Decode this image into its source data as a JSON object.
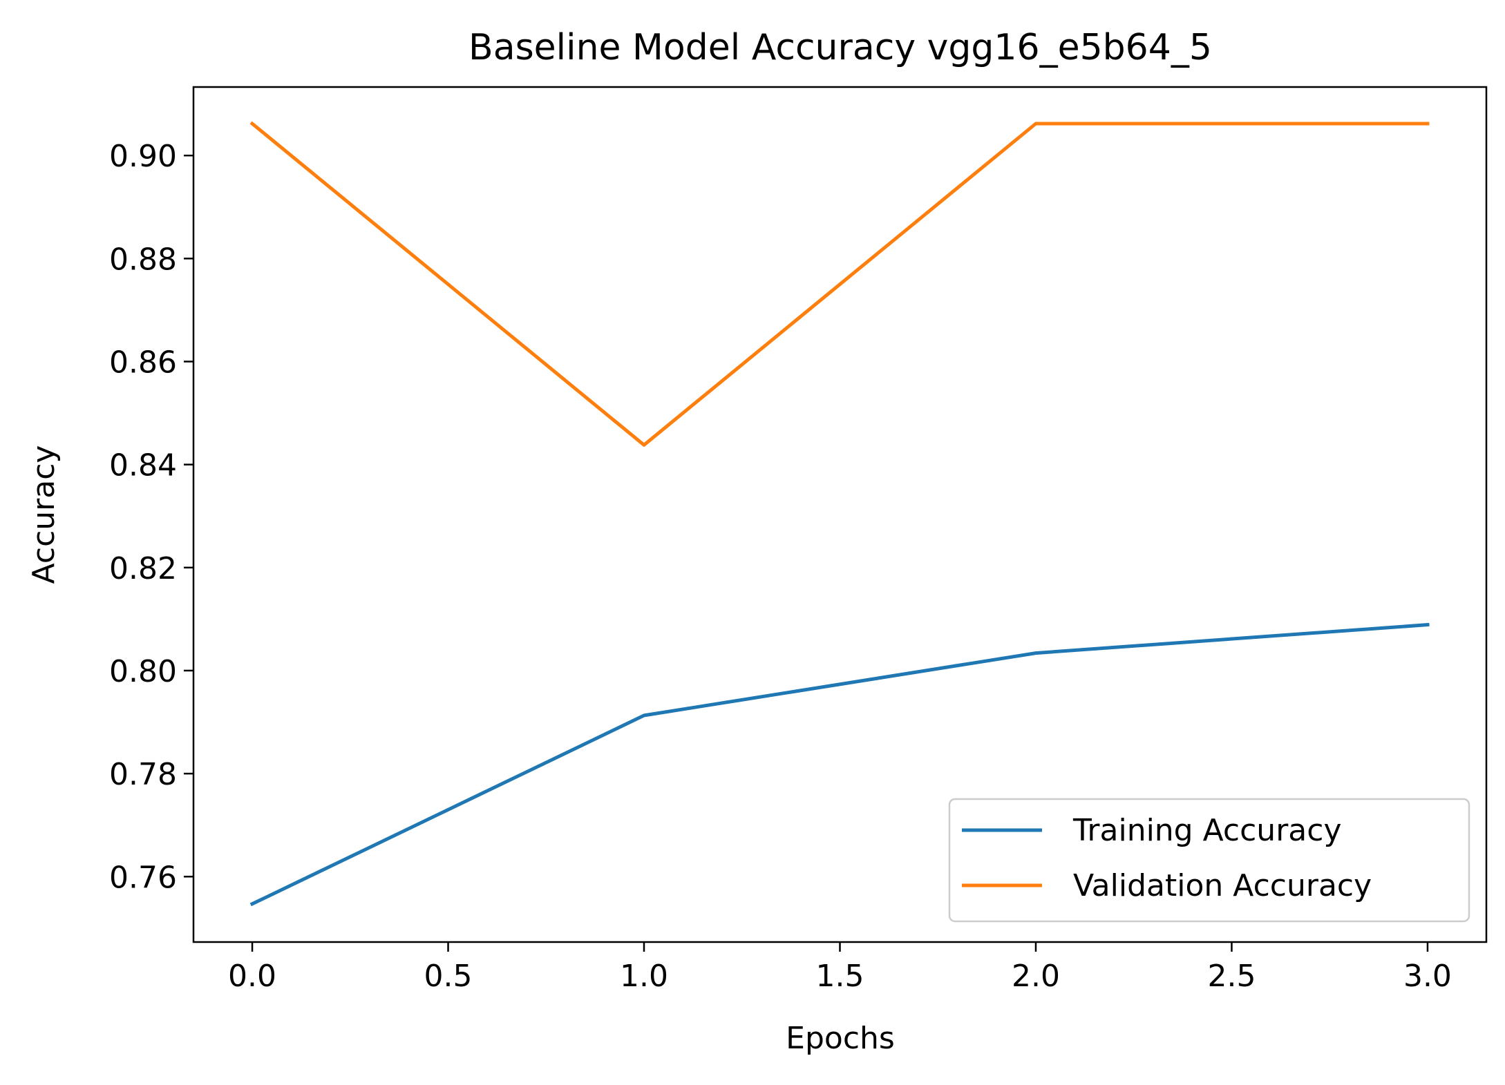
{
  "chart_data": {
    "type": "line",
    "title": "Baseline Model Accuracy vgg16_e5b64_5",
    "xlabel": "Epochs",
    "ylabel": "Accuracy",
    "xlim": [
      -0.15,
      3.15
    ],
    "ylim": [
      0.7473,
      0.9133
    ],
    "xticks": [
      0.0,
      0.5,
      1.0,
      1.5,
      2.0,
      2.5,
      3.0
    ],
    "xtick_labels": [
      "0.0",
      "0.5",
      "1.0",
      "1.5",
      "2.0",
      "2.5",
      "3.0"
    ],
    "yticks": [
      0.76,
      0.78,
      0.8,
      0.82,
      0.84,
      0.86,
      0.88,
      0.9
    ],
    "ytick_labels": [
      "0.76",
      "0.78",
      "0.80",
      "0.82",
      "0.84",
      "0.86",
      "0.88",
      "0.90"
    ],
    "grid": false,
    "legend_position": "lower-right",
    "x": [
      0,
      1,
      2,
      3
    ],
    "series": [
      {
        "name": "Training Accuracy",
        "color": "#1f77b4",
        "values": [
          0.7547,
          0.7913,
          0.8034,
          0.8089
        ]
      },
      {
        "name": "Validation Accuracy",
        "color": "#ff7f0e",
        "values": [
          0.9062,
          0.8438,
          0.9062,
          0.9062
        ]
      }
    ]
  }
}
